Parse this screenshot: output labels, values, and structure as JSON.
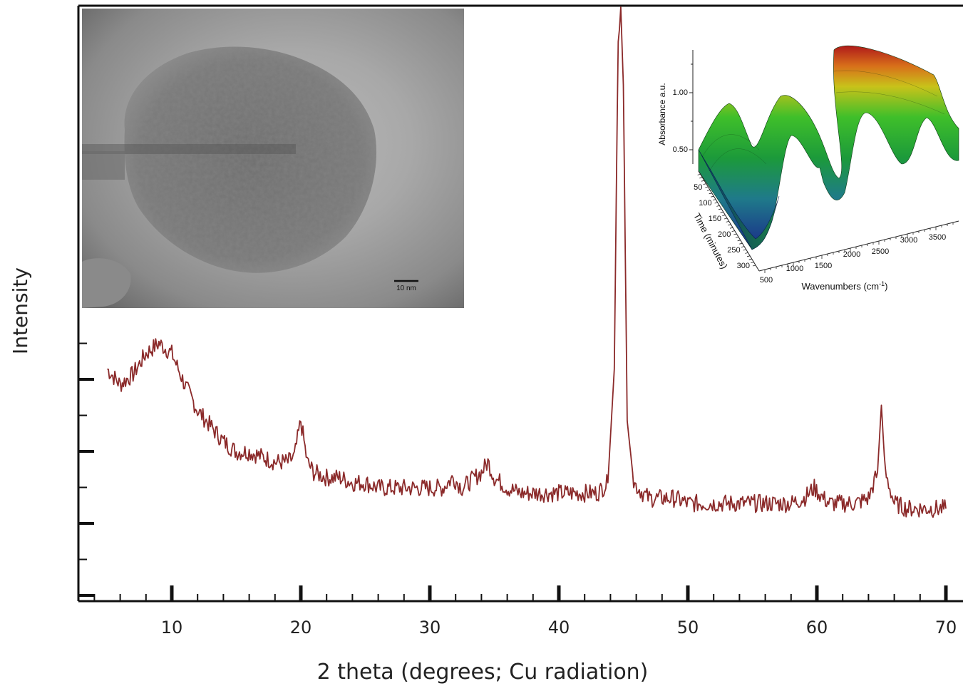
{
  "chart_data": [
    {
      "type": "line",
      "title": "",
      "xlabel": "2 theta (degrees; Cu radiation)",
      "ylabel": "Intensity",
      "xlim": [
        3,
        71
      ],
      "xticks": [
        "10",
        "20",
        "30",
        "40",
        "50",
        "60",
        "70"
      ],
      "series": [
        {
          "color": "#8b2a2a",
          "x": [
            5,
            6,
            7,
            8,
            9,
            10,
            11,
            12,
            13,
            14,
            15,
            16,
            17,
            18,
            19,
            19.5,
            20,
            20.5,
            21,
            22,
            23,
            24,
            25,
            26,
            27,
            28,
            29,
            30,
            31,
            31.8,
            32.5,
            33,
            34,
            34.5,
            35,
            36,
            37,
            38,
            39,
            40,
            41,
            42,
            43,
            43.8,
            44.3,
            44.6,
            44.8,
            45.0,
            45.3,
            45.8,
            46.5,
            47,
            48,
            49,
            50,
            51,
            52,
            53,
            54,
            55,
            56,
            57,
            58,
            59,
            59.8,
            60.5,
            61,
            62,
            63,
            64,
            64.7,
            65.0,
            65.3,
            66,
            67,
            68,
            69,
            70
          ],
          "y": [
            0.3,
            0.27,
            0.29,
            0.33,
            0.35,
            0.33,
            0.27,
            0.22,
            0.19,
            0.16,
            0.14,
            0.14,
            0.13,
            0.12,
            0.12,
            0.13,
            0.2,
            0.12,
            0.1,
            0.09,
            0.09,
            0.08,
            0.08,
            0.07,
            0.07,
            0.07,
            0.07,
            0.07,
            0.07,
            0.09,
            0.07,
            0.08,
            0.1,
            0.12,
            0.09,
            0.07,
            0.06,
            0.06,
            0.06,
            0.06,
            0.06,
            0.06,
            0.06,
            0.08,
            0.3,
            0.95,
            1.0,
            0.85,
            0.2,
            0.08,
            0.06,
            0.05,
            0.05,
            0.05,
            0.04,
            0.04,
            0.04,
            0.04,
            0.04,
            0.04,
            0.04,
            0.04,
            0.04,
            0.05,
            0.07,
            0.05,
            0.04,
            0.04,
            0.04,
            0.05,
            0.1,
            0.23,
            0.1,
            0.04,
            0.03,
            0.03,
            0.03,
            0.03
          ]
        }
      ],
      "grid": false,
      "y_tick_labels": false
    },
    {
      "type": "surface",
      "title": "",
      "xlabel": "Wavenumbers (cm",
      "xlabel_superscript": "-1",
      "xlabel_close": ")",
      "ylabel": "Time (minutes)",
      "zlabel": "Absorbance a.u.",
      "xticks": [
        "500",
        "1000",
        "1500",
        "2000",
        "2500",
        "3000",
        "3500"
      ],
      "yticks": [
        "50",
        "100",
        "150",
        "200",
        "250",
        "300"
      ],
      "zticks": [
        "0.50",
        "1.00"
      ],
      "colormap": [
        "#1a2a8a",
        "#1f7a8a",
        "#1c9a3a",
        "#3fbf2a",
        "#c8c21a",
        "#d8701a",
        "#b01a1a"
      ]
    }
  ],
  "tem_inset": {
    "scale_bar_label": "10 nm"
  }
}
